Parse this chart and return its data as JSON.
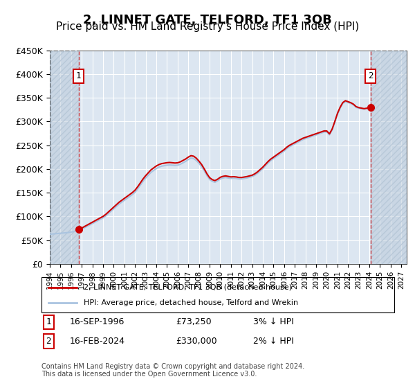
{
  "title": "2, LINNET GATE, TELFORD, TF1 3QB",
  "subtitle": "Price paid vs. HM Land Registry's House Price Index (HPI)",
  "title_fontsize": 13,
  "subtitle_fontsize": 11,
  "xmin": 1994.0,
  "xmax": 2027.5,
  "ymin": 0,
  "ymax": 450000,
  "yticks": [
    0,
    50000,
    100000,
    150000,
    200000,
    250000,
    300000,
    350000,
    400000,
    450000
  ],
  "ytick_labels": [
    "£0",
    "£50K",
    "£100K",
    "£150K",
    "£200K",
    "£250K",
    "£300K",
    "£350K",
    "£400K",
    "£450K"
  ],
  "xticks": [
    1994,
    1995,
    1996,
    1997,
    1998,
    1999,
    2000,
    2001,
    2002,
    2003,
    2004,
    2005,
    2006,
    2007,
    2008,
    2009,
    2010,
    2011,
    2012,
    2013,
    2014,
    2015,
    2016,
    2017,
    2018,
    2019,
    2020,
    2021,
    2022,
    2023,
    2024,
    2025,
    2026,
    2027
  ],
  "bg_color": "#dce6f1",
  "plot_bg_color": "#dce6f1",
  "hatch_color": "#b8c8d8",
  "grid_color": "#ffffff",
  "hpi_line_color": "#aac4e0",
  "price_line_color": "#cc0000",
  "sale1_x": 1996.71,
  "sale1_y": 73250,
  "sale1_label": "1",
  "sale2_x": 2024.12,
  "sale2_y": 330000,
  "sale2_label": "2",
  "marker_color": "#cc0000",
  "legend_label1": "2, LINNET GATE, TELFORD, TF1 3QB (detached house)",
  "legend_label2": "HPI: Average price, detached house, Telford and Wrekin",
  "footnote1": "1    16-SEP-1996          £73,250          3% ↓ HPI",
  "footnote2": "2    16-FEB-2024          £330,000          2% ↓ HPI",
  "copyright_text": "Contains HM Land Registry data © Crown copyright and database right 2024.\nThis data is licensed under the Open Government Licence v3.0.",
  "hpi_data_x": [
    1994.0,
    1994.25,
    1994.5,
    1994.75,
    1995.0,
    1995.25,
    1995.5,
    1995.75,
    1996.0,
    1996.25,
    1996.5,
    1996.75,
    1997.0,
    1997.25,
    1997.5,
    1997.75,
    1998.0,
    1998.25,
    1998.5,
    1998.75,
    1999.0,
    1999.25,
    1999.5,
    1999.75,
    2000.0,
    2000.25,
    2000.5,
    2000.75,
    2001.0,
    2001.25,
    2001.5,
    2001.75,
    2002.0,
    2002.25,
    2002.5,
    2002.75,
    2003.0,
    2003.25,
    2003.5,
    2003.75,
    2004.0,
    2004.25,
    2004.5,
    2004.75,
    2005.0,
    2005.25,
    2005.5,
    2005.75,
    2006.0,
    2006.25,
    2006.5,
    2006.75,
    2007.0,
    2007.25,
    2007.5,
    2007.75,
    2008.0,
    2008.25,
    2008.5,
    2008.75,
    2009.0,
    2009.25,
    2009.5,
    2009.75,
    2010.0,
    2010.25,
    2010.5,
    2010.75,
    2011.0,
    2011.25,
    2011.5,
    2011.75,
    2012.0,
    2012.25,
    2012.5,
    2012.75,
    2013.0,
    2013.25,
    2013.5,
    2013.75,
    2014.0,
    2014.25,
    2014.5,
    2014.75,
    2015.0,
    2015.25,
    2015.5,
    2015.75,
    2016.0,
    2016.25,
    2016.5,
    2016.75,
    2017.0,
    2017.25,
    2017.5,
    2017.75,
    2018.0,
    2018.25,
    2018.5,
    2018.75,
    2019.0,
    2019.25,
    2019.5,
    2019.75,
    2020.0,
    2020.25,
    2020.5,
    2020.75,
    2021.0,
    2021.25,
    2021.5,
    2021.75,
    2022.0,
    2022.25,
    2022.5,
    2022.75,
    2023.0,
    2023.25,
    2023.5,
    2023.75,
    2024.0,
    2024.25
  ],
  "hpi_data_y": [
    62000,
    63000,
    63500,
    64000,
    64500,
    65000,
    65500,
    66000,
    67000,
    68000,
    69500,
    71000,
    73000,
    76000,
    79000,
    82000,
    85000,
    88000,
    91000,
    94000,
    97000,
    101000,
    106000,
    111000,
    116000,
    121000,
    126000,
    130000,
    134000,
    138000,
    142000,
    146000,
    151000,
    158000,
    166000,
    174000,
    181000,
    187000,
    193000,
    197000,
    201000,
    204000,
    206000,
    207000,
    208000,
    208500,
    208000,
    207500,
    208000,
    210000,
    213000,
    216000,
    220000,
    223000,
    222000,
    218000,
    212000,
    205000,
    196000,
    186000,
    178000,
    174000,
    172000,
    175000,
    179000,
    181000,
    182000,
    181000,
    180000,
    180500,
    180000,
    179000,
    179000,
    180000,
    181000,
    182500,
    184000,
    187000,
    191000,
    196000,
    201000,
    207000,
    213000,
    218000,
    222000,
    226000,
    230000,
    234000,
    238000,
    243000,
    247000,
    250000,
    253000,
    256000,
    259000,
    262000,
    264000,
    266000,
    268000,
    270000,
    272000,
    274000,
    276000,
    278000,
    278000,
    272000,
    282000,
    298000,
    315000,
    328000,
    338000,
    342000,
    340000,
    338000,
    335000,
    330000,
    328000,
    327000,
    326000,
    327000,
    328000,
    330000
  ],
  "price_data_x": [
    1996.71,
    2024.12
  ],
  "price_data_y": [
    73250,
    330000
  ],
  "hatch_left_xmax": 1996.71,
  "hatch_right_xmin": 2024.12
}
